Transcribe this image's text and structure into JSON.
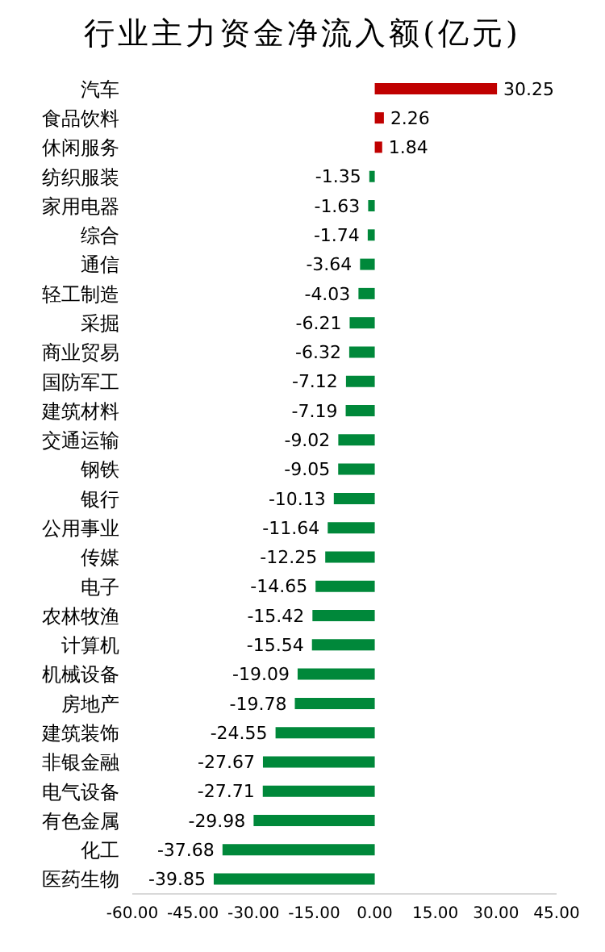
{
  "chart_data": {
    "type": "bar",
    "orientation": "horizontal",
    "title": "行业主力资金净流入额(亿元)",
    "categories": [
      "汽车",
      "食品饮料",
      "休闲服务",
      "纺织服装",
      "家用电器",
      "综合",
      "通信",
      "轻工制造",
      "采掘",
      "商业贸易",
      "国防军工",
      "建筑材料",
      "交通运输",
      "钢铁",
      "银行",
      "公用事业",
      "传媒",
      "电子",
      "农林牧渔",
      "计算机",
      "机械设备",
      "房地产",
      "建筑装饰",
      "非银金融",
      "电气设备",
      "有色金属",
      "化工",
      "医药生物"
    ],
    "values": [
      30.25,
      2.26,
      1.84,
      -1.35,
      -1.63,
      -1.74,
      -3.64,
      -4.03,
      -6.21,
      -6.32,
      -7.12,
      -7.19,
      -9.02,
      -9.05,
      -10.13,
      -11.64,
      -12.25,
      -14.65,
      -15.42,
      -15.54,
      -19.09,
      -19.78,
      -24.55,
      -27.67,
      -27.71,
      -29.98,
      -37.68,
      -39.85
    ],
    "colors": [
      "#c00000",
      "#c00000",
      "#c00000",
      "#00883a",
      "#00883a",
      "#00883a",
      "#00883a",
      "#00883a",
      "#00883a",
      "#00883a",
      "#00883a",
      "#00883a",
      "#00883a",
      "#00883a",
      "#00883a",
      "#00883a",
      "#00883a",
      "#00883a",
      "#00883a",
      "#00883a",
      "#00883a",
      "#00883a",
      "#00883a",
      "#00883a",
      "#00883a",
      "#00883a",
      "#00883a",
      "#00883a"
    ],
    "xlim": [
      -60,
      45
    ],
    "xticks": [
      {
        "value": -60,
        "label": "-60.00"
      },
      {
        "value": -45,
        "label": "-45.00"
      },
      {
        "value": -30,
        "label": "-30.00"
      },
      {
        "value": -15,
        "label": "-15.00"
      },
      {
        "value": 0,
        "label": "0.00"
      },
      {
        "value": 15,
        "label": "15.00"
      },
      {
        "value": 30,
        "label": "30.00"
      },
      {
        "value": 45,
        "label": "45.00"
      }
    ],
    "data_labels": true,
    "grid": false
  }
}
